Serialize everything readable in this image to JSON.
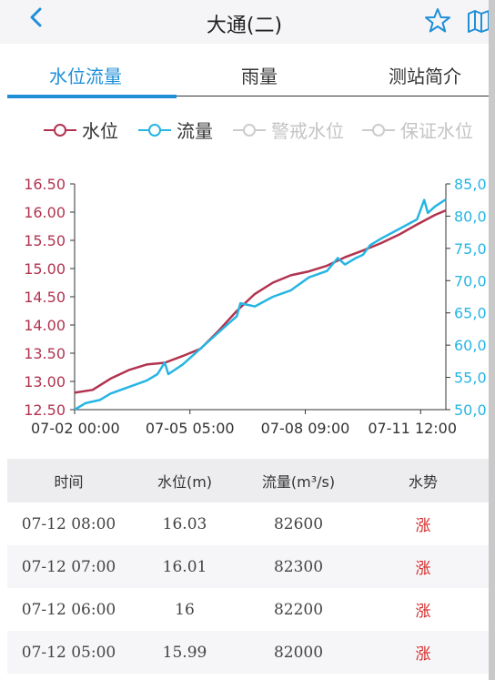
{
  "header": {
    "title": "大通(二)",
    "back_icon": "chevron-left-icon",
    "star_icon": "star-outline-icon",
    "map_icon": "map-icon"
  },
  "tabs": [
    {
      "label": "水位流量",
      "active": true
    },
    {
      "label": "雨量",
      "active": false
    },
    {
      "label": "测站简介",
      "active": false
    }
  ],
  "legend": [
    {
      "label": "水位",
      "color": "#b2334f",
      "enabled": true
    },
    {
      "label": "流量",
      "color": "#27b5e3",
      "enabled": true
    },
    {
      "label": "警戒水位",
      "color": "#cccccc",
      "enabled": false
    },
    {
      "label": "保证水位",
      "color": "#cccccc",
      "enabled": false
    }
  ],
  "chart_data": {
    "type": "line",
    "x_ticks": [
      "07-02 00:00",
      "07-05 05:00",
      "07-08 09:00",
      "07-11 12:00"
    ],
    "left_axis": {
      "ticks": [
        "12.50",
        "13.00",
        "13.50",
        "14.00",
        "14.50",
        "15.00",
        "15.50",
        "16.00",
        "16.50"
      ],
      "ylim": [
        12.5,
        16.5
      ],
      "color": "#b2334f"
    },
    "right_axis": {
      "ticks": [
        "50,0",
        "55,0",
        "60,0",
        "65,0",
        "70,0",
        "75,0",
        "80,0",
        "85,0"
      ],
      "ylim": [
        50000,
        85000
      ],
      "color": "#27b5e3"
    },
    "series": [
      {
        "name": "水位",
        "axis": "left",
        "color": "#b2334f",
        "x": [
          0,
          0.5,
          1,
          1.5,
          2,
          2.5,
          3,
          3.5,
          4,
          4.5,
          5,
          5.5,
          6,
          6.5,
          7,
          7.5,
          8,
          8.5,
          9,
          9.5,
          10,
          10.3
        ],
        "values": [
          12.8,
          12.85,
          13.05,
          13.2,
          13.3,
          13.33,
          13.45,
          13.58,
          13.9,
          14.25,
          14.55,
          14.75,
          14.88,
          14.95,
          15.05,
          15.2,
          15.32,
          15.45,
          15.6,
          15.78,
          15.95,
          16.03
        ]
      },
      {
        "name": "流量",
        "axis": "right",
        "color": "#27b5e3",
        "x": [
          0,
          0.3,
          0.7,
          1,
          1.5,
          2,
          2.3,
          2.5,
          2.6,
          3,
          3.5,
          4,
          4.5,
          4.6,
          5,
          5.5,
          6,
          6.5,
          7,
          7.3,
          7.5,
          7.8,
          8,
          8.2,
          8.5,
          9,
          9.5,
          9.7,
          9.8,
          10,
          10.3
        ],
        "values": [
          50000,
          51000,
          51500,
          52500,
          53500,
          54500,
          55500,
          57300,
          55500,
          57000,
          59500,
          62000,
          64500,
          66500,
          66000,
          67500,
          68500,
          70500,
          71500,
          73500,
          72500,
          73500,
          74000,
          75500,
          76500,
          78000,
          79500,
          82500,
          80500,
          81500,
          82600
        ]
      }
    ]
  },
  "table": {
    "headers": [
      "时间",
      "水位(m)",
      "流量(m³/s)",
      "水势"
    ],
    "rows": [
      {
        "time": "07-12 08:00",
        "level": "16.03",
        "flow": "82600",
        "trend": "涨"
      },
      {
        "time": "07-12 07:00",
        "level": "16.01",
        "flow": "82300",
        "trend": "涨"
      },
      {
        "time": "07-12 06:00",
        "level": "16",
        "flow": "82200",
        "trend": "涨"
      },
      {
        "time": "07-12 05:00",
        "level": "15.99",
        "flow": "82000",
        "trend": "涨"
      }
    ],
    "trend_color": "#d62828"
  }
}
